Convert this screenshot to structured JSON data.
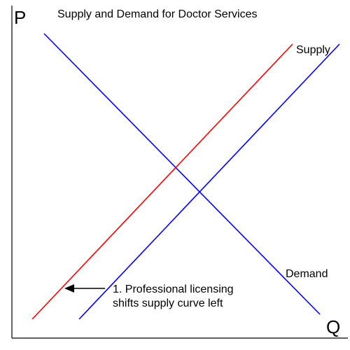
{
  "title": "Supply and Demand for Doctor Services",
  "axes": {
    "y_label": "P",
    "x_label": "Q"
  },
  "curves": {
    "new_supply": {
      "label": "Supply",
      "color": "#ff0000"
    },
    "original_supply": {
      "color": "#0000ff"
    },
    "demand": {
      "label": "Demand",
      "color": "#0000ff"
    }
  },
  "annotation": {
    "line1": "1.  Professional licensing",
    "line2": "shifts supply curve left",
    "arrow_direction": "left"
  },
  "colors": {
    "axis": "#000000",
    "background": "#ffffff"
  }
}
